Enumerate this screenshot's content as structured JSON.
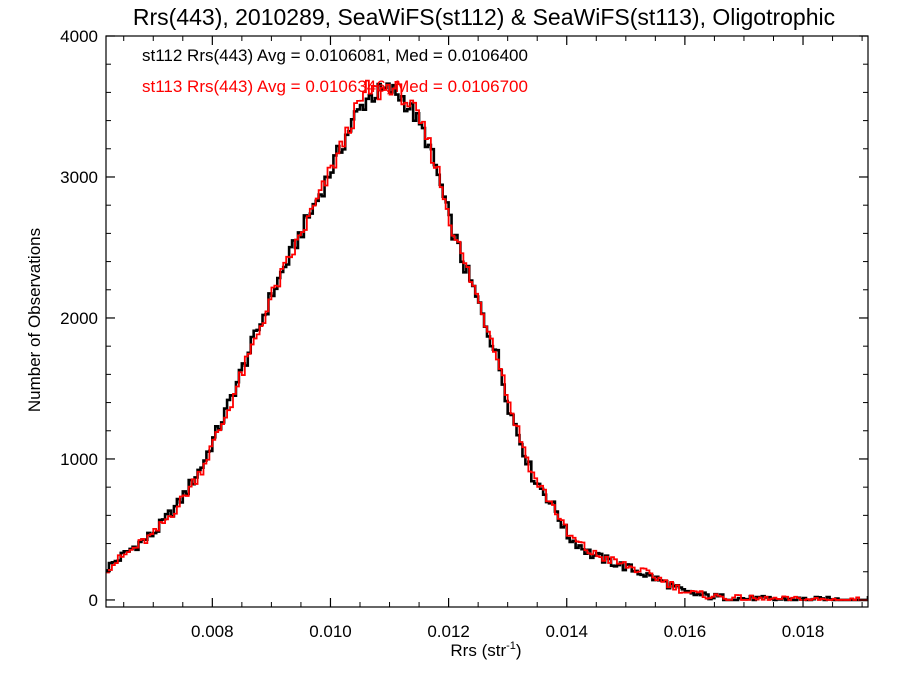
{
  "chart_data": {
    "type": "line",
    "title": "Rrs(443), 2010289, SeaWiFS(st112) & SeaWiFS(st113), Oligotrophic",
    "xlabel": "Rrs (str",
    "xlabel_sup": "-1",
    "xlabel_close": ")",
    "ylabel": "Number of Observations",
    "xlim": [
      0.0062,
      0.0191
    ],
    "ylim": [
      -50,
      4000
    ],
    "x_ticks": [
      0.008,
      0.01,
      0.012,
      0.014,
      0.016,
      0.018
    ],
    "x_tick_labels": [
      "0.008",
      "0.010",
      "0.012",
      "0.014",
      "0.016",
      "0.018"
    ],
    "y_ticks": [
      0,
      1000,
      2000,
      3000,
      4000
    ],
    "y_tick_labels": [
      "0",
      "1000",
      "2000",
      "3000",
      "4000"
    ],
    "step": "histogram",
    "legend_position": "top-left",
    "series": [
      {
        "label": "st112 Rrs(443) Avg = 0.0106081, Med = 0.0106400",
        "color": "#000000",
        "x": [
          0.0062,
          0.0066,
          0.007,
          0.0074,
          0.0078,
          0.0082,
          0.0086,
          0.009,
          0.0094,
          0.0098,
          0.0102,
          0.0104,
          0.0106,
          0.0108,
          0.011,
          0.0112,
          0.0114,
          0.0116,
          0.0118,
          0.012,
          0.0122,
          0.0124,
          0.0126,
          0.0128,
          0.013,
          0.0132,
          0.0134,
          0.0136,
          0.0138,
          0.014,
          0.0144,
          0.0148,
          0.0152,
          0.0156,
          0.016,
          0.0164,
          0.0168,
          0.0172,
          0.0176,
          0.018,
          0.0184,
          0.0188,
          0.0191
        ],
        "y": [
          230,
          360,
          480,
          680,
          950,
          1330,
          1760,
          2180,
          2540,
          2880,
          3250,
          3430,
          3560,
          3600,
          3620,
          3560,
          3440,
          3270,
          3010,
          2680,
          2420,
          2200,
          1960,
          1730,
          1370,
          1120,
          880,
          760,
          630,
          450,
          320,
          260,
          200,
          130,
          50,
          25,
          12,
          6,
          4,
          2,
          1,
          0,
          0
        ]
      },
      {
        "label": "st113 Rrs(443) Avg = 0.0106346, Med = 0.0106700",
        "color": "#ff0000",
        "x": [
          0.0062,
          0.0066,
          0.007,
          0.0074,
          0.0078,
          0.0082,
          0.0086,
          0.009,
          0.0094,
          0.0098,
          0.0102,
          0.0104,
          0.0106,
          0.0108,
          0.011,
          0.0112,
          0.0114,
          0.0116,
          0.0118,
          0.012,
          0.0122,
          0.0124,
          0.0126,
          0.0128,
          0.013,
          0.0132,
          0.0134,
          0.0136,
          0.0138,
          0.014,
          0.0144,
          0.0148,
          0.0152,
          0.0156,
          0.016,
          0.0164,
          0.0168,
          0.0172,
          0.0176,
          0.018,
          0.0184,
          0.0188,
          0.0191
        ],
        "y": [
          225,
          350,
          470,
          670,
          930,
          1300,
          1730,
          2170,
          2520,
          2870,
          3250,
          3460,
          3620,
          3600,
          3650,
          3580,
          3460,
          3290,
          3030,
          2700,
          2440,
          2220,
          1980,
          1750,
          1400,
          1140,
          890,
          760,
          630,
          460,
          330,
          270,
          210,
          140,
          55,
          28,
          14,
          7,
          5,
          3,
          1,
          0,
          0
        ]
      }
    ]
  }
}
